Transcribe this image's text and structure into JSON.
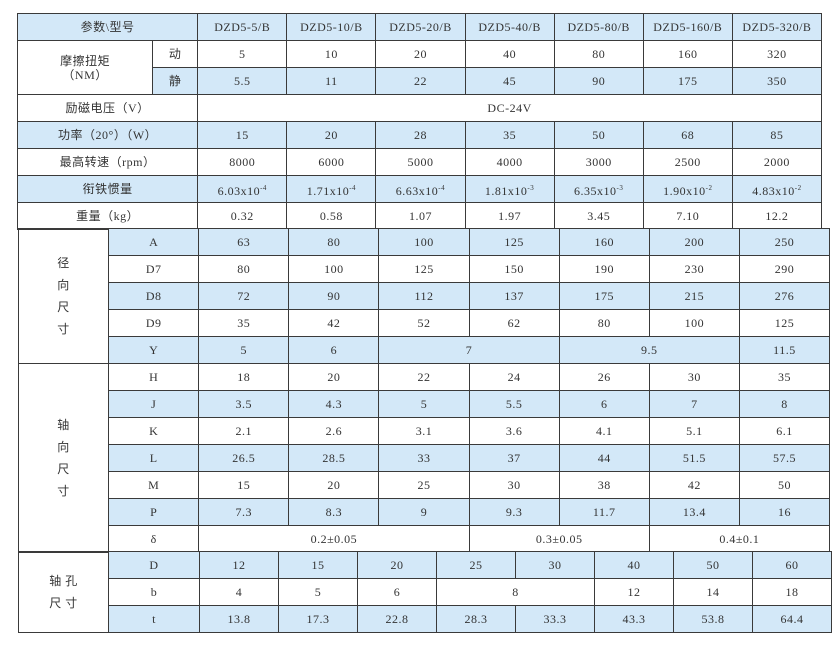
{
  "header": {
    "label": "参数\\型号",
    "models": [
      "DZD5-5/B",
      "DZD5-10/B",
      "DZD5-20/B",
      "DZD5-40/B",
      "DZD5-80/B",
      "DZD5-160/B",
      "DZD5-320/B"
    ]
  },
  "torque": {
    "label": "摩擦扭矩\n（NM）",
    "dynamic": {
      "label": "动",
      "values": [
        "5",
        "10",
        "20",
        "40",
        "80",
        "160",
        "320"
      ]
    },
    "static": {
      "label": "静",
      "values": [
        "5.5",
        "11",
        "22",
        "45",
        "90",
        "175",
        "350"
      ]
    }
  },
  "voltage": {
    "label": "励磁电压（V）",
    "value": "DC-24V"
  },
  "power": {
    "label": "功率（20°）（W）",
    "values": [
      "15",
      "20",
      "28",
      "35",
      "50",
      "68",
      "85"
    ]
  },
  "speed": {
    "label": "最高转速（rpm）",
    "values": [
      "8000",
      "6000",
      "5000",
      "4000",
      "3000",
      "2500",
      "2000"
    ]
  },
  "inertia": {
    "label": "衔铁惯量",
    "values": [
      {
        "m": "6.03x10",
        "e": "-4"
      },
      {
        "m": "1.71x10",
        "e": "-4"
      },
      {
        "m": "6.63x10",
        "e": "-4"
      },
      {
        "m": "1.81x10",
        "e": "-3"
      },
      {
        "m": "6.35x10",
        "e": "-3"
      },
      {
        "m": "1.90x10",
        "e": "-2"
      },
      {
        "m": "4.83x10",
        "e": "-2"
      }
    ]
  },
  "weight": {
    "label": "重量（kg）",
    "values": [
      "0.32",
      "0.58",
      "1.07",
      "1.97",
      "3.45",
      "7.10",
      "12.2"
    ]
  },
  "radial": {
    "label": "径\n向\n尺\n寸",
    "rows": [
      {
        "key": "A",
        "cells": [
          {
            "v": "63"
          },
          {
            "v": "80"
          },
          {
            "v": "100"
          },
          {
            "v": "125"
          },
          {
            "v": "160"
          },
          {
            "v": "200"
          },
          {
            "v": "250"
          }
        ]
      },
      {
        "key": "D7",
        "cells": [
          {
            "v": "80"
          },
          {
            "v": "100"
          },
          {
            "v": "125"
          },
          {
            "v": "150"
          },
          {
            "v": "190"
          },
          {
            "v": "230"
          },
          {
            "v": "290"
          }
        ]
      },
      {
        "key": "D8",
        "cells": [
          {
            "v": "72"
          },
          {
            "v": "90"
          },
          {
            "v": "112"
          },
          {
            "v": "137"
          },
          {
            "v": "175"
          },
          {
            "v": "215"
          },
          {
            "v": "276"
          }
        ]
      },
      {
        "key": "D9",
        "cells": [
          {
            "v": "35"
          },
          {
            "v": "42"
          },
          {
            "v": "52"
          },
          {
            "v": "62"
          },
          {
            "v": "80"
          },
          {
            "v": "100"
          },
          {
            "v": "125"
          }
        ]
      },
      {
        "key": "Y",
        "cells": [
          {
            "v": "5"
          },
          {
            "v": "6"
          },
          {
            "v": "7",
            "span": 2
          },
          {
            "v": "9.5",
            "span": 2
          },
          {
            "v": "11.5"
          }
        ]
      }
    ]
  },
  "axial": {
    "label": "轴\n向\n尺\n寸",
    "rows": [
      {
        "key": "H",
        "cells": [
          {
            "v": "18"
          },
          {
            "v": "20"
          },
          {
            "v": "22"
          },
          {
            "v": "24"
          },
          {
            "v": "26"
          },
          {
            "v": "30"
          },
          {
            "v": "35"
          }
        ]
      },
      {
        "key": "J",
        "cells": [
          {
            "v": "3.5"
          },
          {
            "v": "4.3"
          },
          {
            "v": "5"
          },
          {
            "v": "5.5"
          },
          {
            "v": "6"
          },
          {
            "v": "7"
          },
          {
            "v": "8"
          }
        ]
      },
      {
        "key": "K",
        "cells": [
          {
            "v": "2.1"
          },
          {
            "v": "2.6"
          },
          {
            "v": "3.1"
          },
          {
            "v": "3.6"
          },
          {
            "v": "4.1"
          },
          {
            "v": "5.1"
          },
          {
            "v": "6.1"
          }
        ]
      },
      {
        "key": "L",
        "cells": [
          {
            "v": "26.5"
          },
          {
            "v": "28.5"
          },
          {
            "v": "33"
          },
          {
            "v": "37"
          },
          {
            "v": "44"
          },
          {
            "v": "51.5"
          },
          {
            "v": "57.5"
          }
        ]
      },
      {
        "key": "M",
        "cells": [
          {
            "v": "15"
          },
          {
            "v": "20"
          },
          {
            "v": "25"
          },
          {
            "v": "30"
          },
          {
            "v": "38"
          },
          {
            "v": "42"
          },
          {
            "v": "50"
          }
        ]
      },
      {
        "key": "P",
        "cells": [
          {
            "v": "7.3"
          },
          {
            "v": "8.3"
          },
          {
            "v": "9"
          },
          {
            "v": "9.3"
          },
          {
            "v": "11.7"
          },
          {
            "v": "13.4"
          },
          {
            "v": "16"
          }
        ]
      },
      {
        "key": "δ",
        "cells": [
          {
            "v": "0.2±0.05",
            "span": 3
          },
          {
            "v": "0.3±0.05",
            "span": 2
          },
          {
            "v": "0.4±0.1",
            "span": 2
          }
        ]
      }
    ]
  },
  "bore": {
    "label": "轴  孔\n尺  寸",
    "rows": [
      {
        "key": "D",
        "cells": [
          {
            "v": "12"
          },
          {
            "v": "15"
          },
          {
            "v": "20"
          },
          {
            "v": "25"
          },
          {
            "v": "30"
          },
          {
            "v": "40"
          },
          {
            "v": "50"
          },
          {
            "v": "60"
          }
        ]
      },
      {
        "key": "b",
        "cells": [
          {
            "v": "4"
          },
          {
            "v": "5"
          },
          {
            "v": "6"
          },
          {
            "v": "8",
            "span": 2
          },
          {
            "v": "12"
          },
          {
            "v": "14"
          },
          {
            "v": "18"
          }
        ]
      },
      {
        "key": "t",
        "cells": [
          {
            "v": "13.8"
          },
          {
            "v": "17.3"
          },
          {
            "v": "22.8"
          },
          {
            "v": "28.3"
          },
          {
            "v": "33.3"
          },
          {
            "v": "43.3"
          },
          {
            "v": "53.8"
          },
          {
            "v": "64.4"
          }
        ]
      }
    ]
  },
  "colors": {
    "shade": "#d3e8f8",
    "line": "#3a3a3a",
    "text": "#333333"
  }
}
